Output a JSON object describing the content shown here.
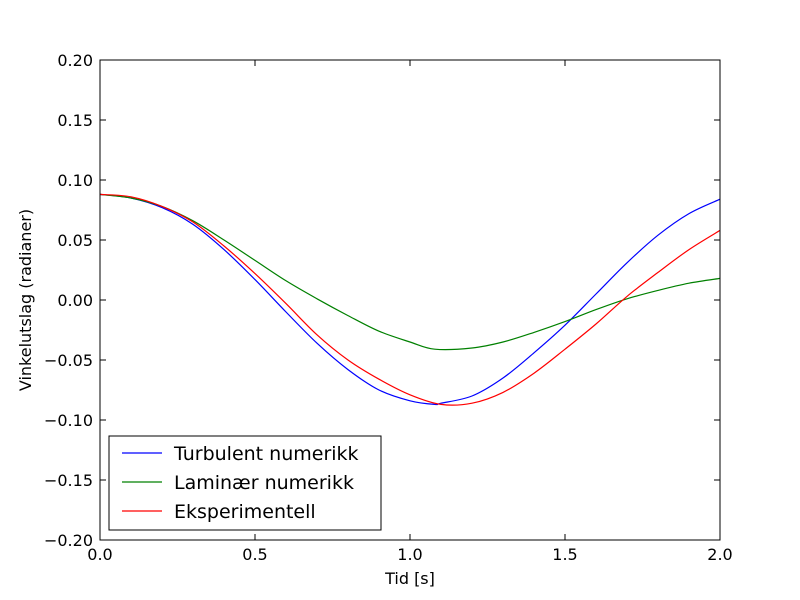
{
  "chart_data": {
    "type": "line",
    "title": "",
    "xlabel": "Tid [s]",
    "ylabel": "Vinkelutslag (radianer)",
    "xlim": [
      0.0,
      2.0
    ],
    "ylim": [
      -0.2,
      0.2
    ],
    "xticks": [
      0.0,
      0.5,
      1.0,
      1.5,
      2.0
    ],
    "xtick_labels": [
      "0.0",
      "0.5",
      "1.0",
      "1.5",
      "2.0"
    ],
    "yticks": [
      -0.2,
      -0.15,
      -0.1,
      -0.05,
      0.0,
      0.05,
      0.1,
      0.15,
      0.2
    ],
    "ytick_labels": [
      "−0.20",
      "−0.15",
      "−0.10",
      "−0.05",
      "0.00",
      "0.05",
      "0.10",
      "0.15",
      "0.20"
    ],
    "grid": false,
    "legend_position": "bottom-left",
    "series": [
      {
        "name": "Turbulent numerikk",
        "color": "#0000ff",
        "x": [
          0.0,
          0.1,
          0.2,
          0.3,
          0.4,
          0.5,
          0.6,
          0.7,
          0.8,
          0.9,
          1.0,
          1.08,
          1.1,
          1.2,
          1.3,
          1.4,
          1.5,
          1.6,
          1.7,
          1.8,
          1.9,
          2.0
        ],
        "y": [
          0.088,
          0.085,
          0.077,
          0.063,
          0.042,
          0.017,
          -0.01,
          -0.036,
          -0.058,
          -0.075,
          -0.084,
          -0.087,
          -0.086,
          -0.08,
          -0.065,
          -0.044,
          -0.021,
          0.005,
          0.031,
          0.054,
          0.072,
          0.084
        ]
      },
      {
        "name": "Laminær numerikk",
        "color": "#008000",
        "x": [
          0.0,
          0.1,
          0.2,
          0.3,
          0.4,
          0.5,
          0.6,
          0.7,
          0.8,
          0.9,
          1.0,
          1.08,
          1.2,
          1.3,
          1.4,
          1.5,
          1.6,
          1.7,
          1.8,
          1.9,
          2.0
        ],
        "y": [
          0.088,
          0.085,
          0.078,
          0.066,
          0.05,
          0.033,
          0.016,
          0.001,
          -0.013,
          -0.026,
          -0.035,
          -0.041,
          -0.04,
          -0.035,
          -0.027,
          -0.018,
          -0.008,
          0.001,
          0.008,
          0.014,
          0.018
        ]
      },
      {
        "name": "Eksperimentell",
        "color": "#ff0000",
        "x": [
          0.0,
          0.1,
          0.2,
          0.3,
          0.4,
          0.5,
          0.6,
          0.7,
          0.8,
          0.9,
          1.0,
          1.1,
          1.2,
          1.3,
          1.4,
          1.5,
          1.6,
          1.7,
          1.8,
          1.9,
          2.0
        ],
        "y": [
          0.088,
          0.086,
          0.078,
          0.065,
          0.045,
          0.022,
          -0.003,
          -0.029,
          -0.05,
          -0.066,
          -0.079,
          -0.087,
          -0.086,
          -0.077,
          -0.061,
          -0.041,
          -0.02,
          0.003,
          0.023,
          0.042,
          0.058
        ]
      }
    ]
  }
}
